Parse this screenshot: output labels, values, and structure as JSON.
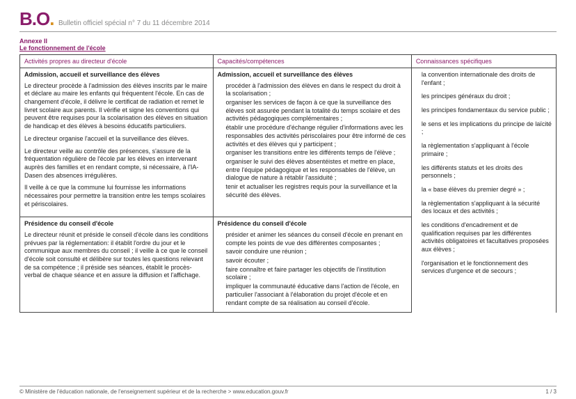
{
  "colors": {
    "brand": "#8a1c6a",
    "accent_dot": "#d89020",
    "rule": "#444444",
    "soft_rule": "#999999",
    "muted": "#888888",
    "text": "#222222"
  },
  "masthead": {
    "logo_main": "B.O",
    "logo_dot": ".",
    "bulletin": "Bulletin officiel spécial n° 7 du 11 décembre 2014"
  },
  "annexe": {
    "line1": "Annexe II",
    "line2": "Le fonctionnement de l'école"
  },
  "headers": {
    "col1": "Activités propres au directeur d'école",
    "col2": "Capacités/compétences",
    "col3": "Connaissances spécifiques"
  },
  "section1": {
    "title_left": "Admission, accueil et surveillance des élèves",
    "title_mid": "Admission, accueil et surveillance des élèves",
    "left_p1": "Le directeur procède à l'admission des élèves inscrits par le maire et déclare au maire les enfants qui fréquentent l'école. En cas de changement d'école, il délivre le certificat de radiation et remet le livret scolaire aux parents. Il vérifie et signe les conventions qui peuvent être requises pour la scolarisation des élèves en situation de handicap et des élèves à besoins éducatifs particuliers.",
    "left_p2": "Le directeur organise l'accueil et la surveillance des élèves.",
    "left_p3": "Le directeur veille au contrôle des présences, s'assure de la fréquentation régulière de l'école par les élèves en intervenant auprès des familles et en rendant compte, si nécessaire, à l'IA-Dasen des absences irrégulières.",
    "left_p4": "Il veille à ce que la commune lui fournisse les informations nécessaires pour permettre la transition entre les temps scolaires et périscolaires.",
    "mid_b1": "procéder à l'admission des élèves en dans le respect du droit à la scolarisation ;",
    "mid_b2": "organiser les services de façon à ce que la surveillance des élèves soit assurée pendant la totalité du temps scolaire et des activités pédagogiques complémentaires ;",
    "mid_b3": "établir une procédure d'échange régulier d'informations avec les responsables des activités périscolaires pour être informé de ces activités et des élèves qui y participent ;",
    "mid_b4": "organiser les transitions entre les différents temps de l'élève ;",
    "mid_b5": "organiser le suivi des élèves absentéistes et mettre en place, entre l'équipe pédagogique et les responsables de l'élève, un dialogue de nature à rétablir l'assiduité ;",
    "mid_b6": "tenir et actualiser les registres requis pour la surveillance et la sécurité des élèves."
  },
  "section2": {
    "title_left": "Présidence du conseil d'école",
    "title_mid": "Présidence du conseil d'école",
    "left_p1": "Le directeur réunit et préside le conseil d'école dans les conditions prévues par la réglementation: il établit l'ordre du jour et le communique aux membres du conseil ; il veille à ce que le conseil d'école soit consulté et délibère sur toutes les questions relevant de sa compétence ; il préside ses séances, établit le procès-verbal de chaque séance et en assure la diffusion et l'affichage.",
    "mid_b1": "présider et animer les séances du conseil d'école en prenant en compte les points de vue des différentes composantes ;",
    "mid_b2": "savoir conduire une réunion ;",
    "mid_b3": "savoir écouter ;",
    "mid_b4": "faire connaître et faire partager les objectifs de l'institution scolaire ;",
    "mid_b5": "impliquer la communauté éducative dans l'action de l'école, en particulier l'associant à l'élaboration du projet d'école et en rendant compte de sa réalisation au conseil d'école."
  },
  "knowledge": {
    "k1": "la convention internationale des droits de l'enfant ;",
    "k2": "les principes généraux du droit ;",
    "k3": "les principes fondamentaux du service public ;",
    "k4": "le sens et les implications du principe de laïcité ;",
    "k5": "la règlementation s'appliquant à l'école primaire ;",
    "k6": "les différents statuts et les droits des personnels ;",
    "k7": "la « base élèves du premier degré » ;",
    "k8": "la règlementation s'appliquant à la sécurité des locaux et des activités ;",
    "k9": "les conditions d'encadrement et de qualification requises par les différentes activités obligatoires et facultatives proposées aux élèves ;",
    "k10": "l'organisation et le fonctionnement des services d'urgence et de secours ;"
  },
  "footer": {
    "left": "© Ministère de l'éducation nationale, de l'enseignement supérieur et de la recherche > www.education.gouv.fr",
    "right": "1 / 3"
  }
}
